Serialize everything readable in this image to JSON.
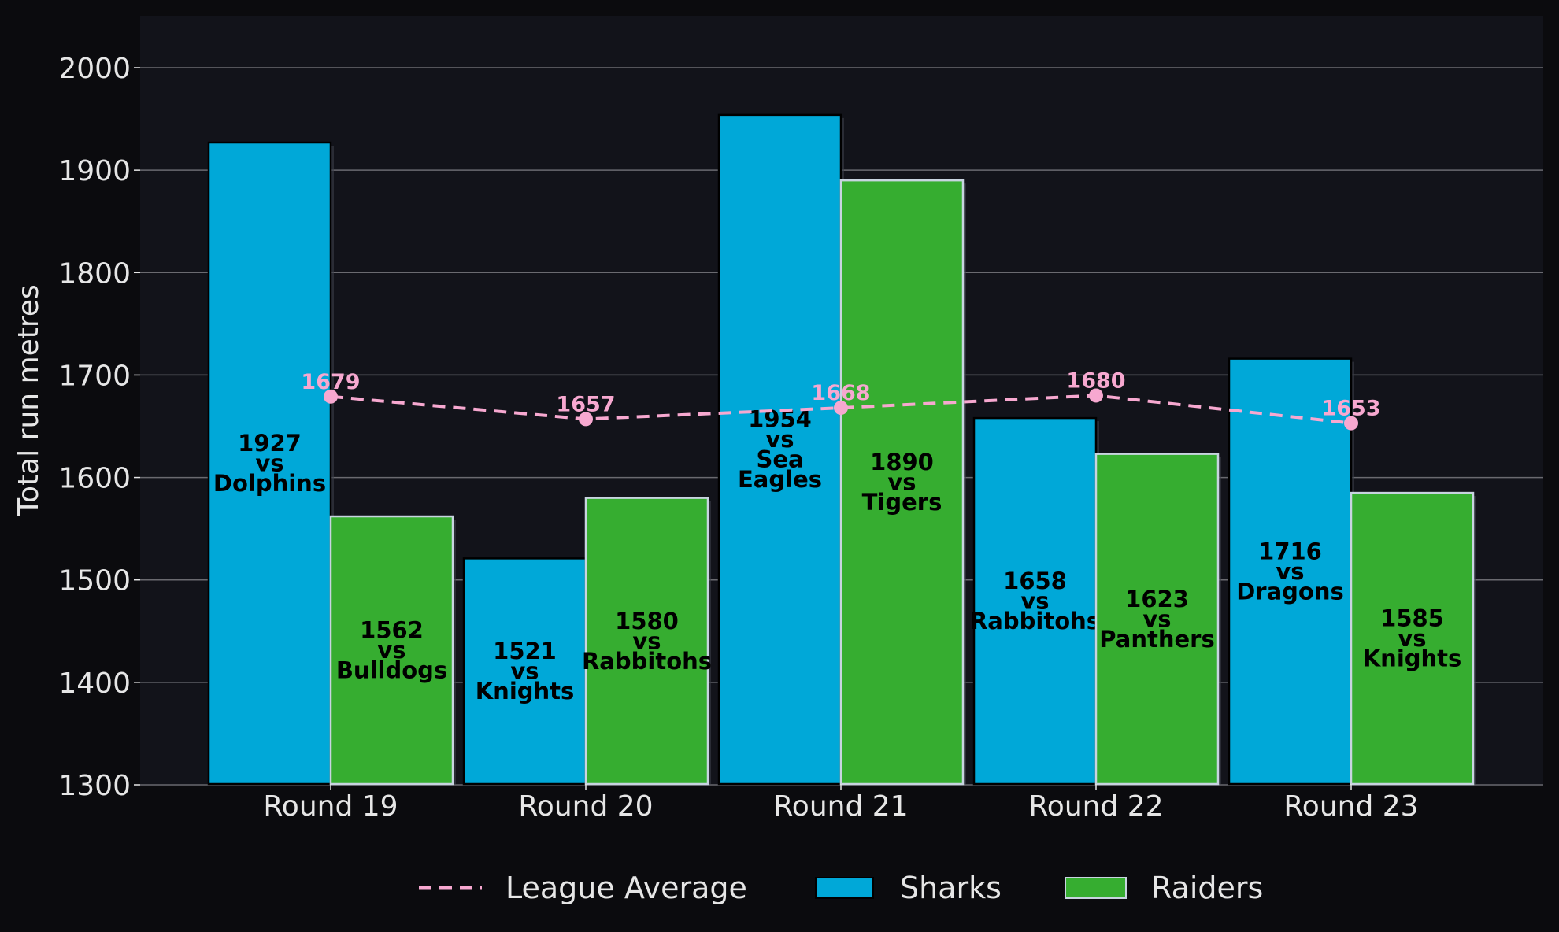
{
  "chart_data": {
    "type": "bar",
    "categories": [
      "Round 19",
      "Round 20",
      "Round 21",
      "Round 22",
      "Round 23"
    ],
    "ylabel": "Total run metres",
    "ylim": [
      1300,
      2050
    ],
    "yticks": [
      1300,
      1400,
      1500,
      1600,
      1700,
      1800,
      1900,
      2000
    ],
    "grid": true,
    "legend_position": "bottom",
    "series": [
      {
        "name": "Sharks",
        "type": "bar",
        "color": "#00a8d8",
        "values": [
          1927,
          1521,
          1954,
          1658,
          1716
        ],
        "opponents": [
          "Dolphins",
          "Knights",
          "Sea Eagles",
          "Rabbitohs",
          "Dragons"
        ]
      },
      {
        "name": "Raiders",
        "type": "bar",
        "color": "#36ad30",
        "values": [
          1562,
          1580,
          1890,
          1623,
          1585
        ],
        "opponents": [
          "Bulldogs",
          "Rabbitohs",
          "Tigers",
          "Panthers",
          "Knights"
        ]
      },
      {
        "name": "League Average",
        "type": "line",
        "style": "dashed",
        "color": "#f7a8d0",
        "values": [
          1679,
          1657,
          1668,
          1680,
          1653
        ]
      }
    ],
    "versus_word": "vs"
  }
}
